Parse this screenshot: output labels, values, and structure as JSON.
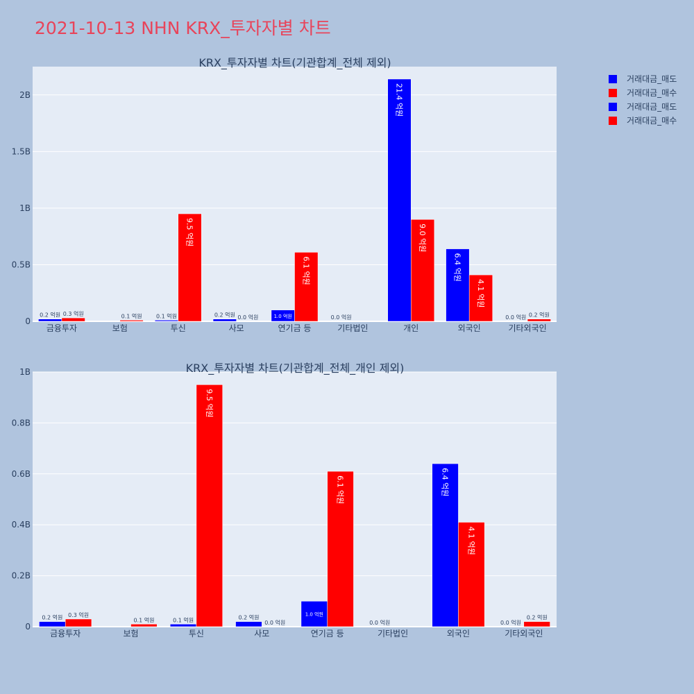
{
  "title": "2021-10-13 NHN KRX_투자자별 차트",
  "colors": {
    "sell": "#0000ff",
    "buy": "#ff0000",
    "plot_bg": "#e5ecf6",
    "paper_bg": "#b0c4de",
    "title": "#e8445a"
  },
  "legend": [
    {
      "name": "거래대금_매도",
      "color": "#0000ff"
    },
    {
      "name": "거래대금_매수",
      "color": "#ff0000"
    },
    {
      "name": "거래대금_매도",
      "color": "#0000ff"
    },
    {
      "name": "거래대금_매수",
      "color": "#ff0000"
    }
  ],
  "chart_data": [
    {
      "type": "bar",
      "title": "KRX_투자자별 차트(기관합계_전체 제외)",
      "categories": [
        "금융투자",
        "보험",
        "투신",
        "사모",
        "연기금 등",
        "기타법인",
        "개인",
        "외국인",
        "기타외국인"
      ],
      "ylim": [
        0,
        2250000000
      ],
      "yticks": [
        0,
        500000000,
        1000000000,
        1500000000,
        2000000000
      ],
      "yticklabels": [
        "0",
        "0.5B",
        "1B",
        "1.5B",
        "2B"
      ],
      "legend_position": "top-right",
      "series": [
        {
          "name": "거래대금_매도",
          "values": [
            20000000,
            0,
            10000000,
            20000000,
            100000000,
            0,
            2140000000,
            640000000,
            0
          ],
          "labels": [
            "0.2 억원",
            "",
            "0.1 억원",
            "0.2 억원",
            "1.0 억원",
            "0.0 억원",
            "21.4 억원",
            "6.4 억원",
            "0.0 억원"
          ]
        },
        {
          "name": "거래대금_매수",
          "values": [
            30000000,
            10000000,
            950000000,
            0,
            610000000,
            0,
            900000000,
            410000000,
            20000000
          ],
          "labels": [
            "0.3 억원",
            "0.1 억원",
            "9.5 억원",
            "0.0 억원",
            "6.1 억원",
            "",
            "9.0 억원",
            "4.1 억원",
            "0.2 억원"
          ]
        }
      ]
    },
    {
      "type": "bar",
      "title": "KRX_투자자별 차트(기관합계_전체_개인 제외)",
      "categories": [
        "금융투자",
        "보험",
        "투신",
        "사모",
        "연기금 등",
        "기타법인",
        "외국인",
        "기타외국인"
      ],
      "ylim": [
        0,
        1000000000
      ],
      "yticks": [
        0,
        200000000,
        400000000,
        600000000,
        800000000,
        1000000000
      ],
      "yticklabels": [
        "0",
        "0.2B",
        "0.4B",
        "0.6B",
        "0.8B",
        "1B"
      ],
      "series": [
        {
          "name": "거래대금_매도",
          "values": [
            20000000,
            0,
            10000000,
            20000000,
            100000000,
            0,
            640000000,
            0
          ],
          "labels": [
            "0.2 억원",
            "",
            "0.1 억원",
            "0.2 억원",
            "1.0 억원",
            "0.0 억원",
            "6.4 억원",
            "0.0 억원"
          ]
        },
        {
          "name": "거래대금_매수",
          "values": [
            30000000,
            10000000,
            950000000,
            0,
            610000000,
            0,
            410000000,
            20000000
          ],
          "labels": [
            "0.3 억원",
            "0.1 억원",
            "9.5 억원",
            "0.0 억원",
            "6.1 억원",
            "",
            "4.1 억원",
            "0.2 억원"
          ]
        }
      ]
    }
  ]
}
